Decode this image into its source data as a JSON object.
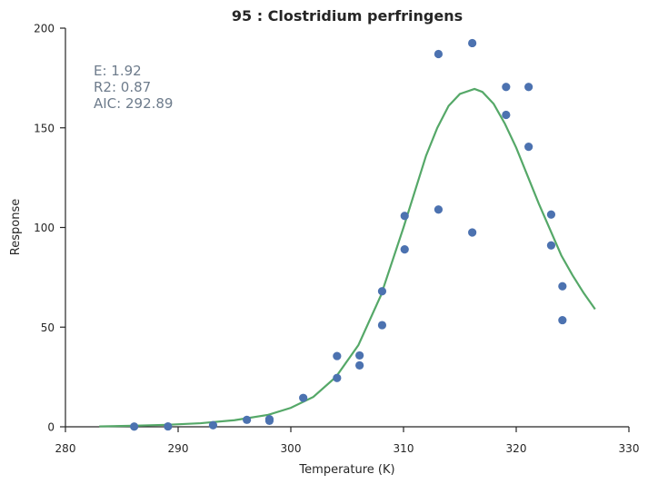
{
  "chart_data": {
    "type": "scatter",
    "title": "95 : Clostridium perfringens",
    "xlabel": "Temperature (K)",
    "ylabel": "Response",
    "xlim": [
      280,
      330
    ],
    "ylim": [
      0,
      200
    ],
    "xticks": [
      280,
      290,
      300,
      310,
      320,
      330
    ],
    "yticks": [
      0,
      50,
      100,
      150,
      200
    ],
    "grid": false,
    "annotations": {
      "e": "E:  1.92",
      "r2": "R2:  0.87",
      "aic": "AIC: 292.89"
    },
    "colors": {
      "points": "#4c72b0",
      "fit": "#55a868",
      "annotation": "#6e7c8c",
      "axes": "#262626"
    },
    "series": [
      {
        "kind": "points",
        "x": [
          286.1,
          289.1,
          293.1,
          296.1,
          298.1,
          298.1,
          301.1,
          304.1,
          304.1,
          306.1,
          306.1,
          308.1,
          308.1,
          310.1,
          310.1,
          313.1,
          313.1,
          316.1,
          316.1,
          319.1,
          319.1,
          321.1,
          321.1,
          323.1,
          323.1,
          324.1,
          324.1
        ],
        "y": [
          0.1,
          0.2,
          0.8,
          3.5,
          3.0,
          3.8,
          14.5,
          24.5,
          35.5,
          30.8,
          35.8,
          51.0,
          68.0,
          89.0,
          105.8,
          109.0,
          187.0,
          97.5,
          192.5,
          156.5,
          170.5,
          140.5,
          170.5,
          91.0,
          106.5,
          53.5,
          70.5
        ]
      },
      {
        "kind": "fit",
        "x": [
          283,
          286,
          289,
          292,
          295,
          298,
          300,
          302,
          304,
          306,
          308,
          310,
          312,
          313,
          314,
          315,
          316.3,
          317,
          318,
          319,
          320,
          321,
          322,
          323,
          324,
          325,
          326,
          327
        ],
        "y": [
          0.2,
          0.5,
          1.0,
          1.8,
          3.3,
          6.0,
          9.5,
          15.0,
          25.0,
          41.0,
          66.0,
          100.0,
          136.0,
          150.0,
          161.0,
          167.0,
          169.5,
          168.0,
          162.0,
          152.0,
          140.0,
          126.0,
          112.0,
          99.0,
          86.0,
          76.0,
          67.0,
          59.0
        ]
      }
    ]
  }
}
